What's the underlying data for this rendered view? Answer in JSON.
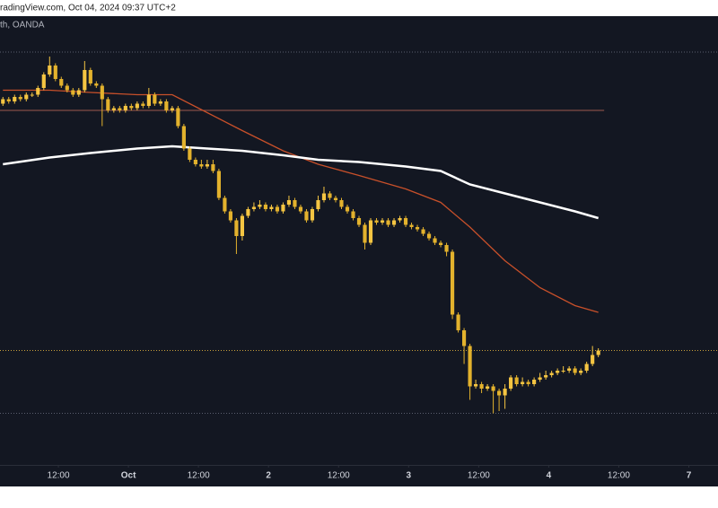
{
  "caption": "radingView.com, Oct 04, 2024 09:37 UTC+2",
  "chart_data": {
    "type": "candlestick",
    "subtitle": "th, OANDA",
    "up_color": "#f5c542",
    "down_color": "#e3b22d",
    "xlim": [
      0,
      123
    ],
    "ylim": [
      1.102,
      1.122
    ],
    "xticks": [
      {
        "value": 10,
        "label": "12:00"
      },
      {
        "value": 22,
        "label": "Oct"
      },
      {
        "value": 34,
        "label": "12:00"
      },
      {
        "value": 46,
        "label": "2"
      },
      {
        "value": 58,
        "label": "12:00"
      },
      {
        "value": 70,
        "label": "3"
      },
      {
        "value": 82,
        "label": "12:00"
      },
      {
        "value": 94,
        "label": "4"
      },
      {
        "value": 106,
        "label": "12:00"
      },
      {
        "value": 118,
        "label": "7"
      }
    ],
    "open": [
      1.1181,
      1.1183,
      1.1182,
      1.1184,
      1.1183,
      1.1185,
      1.1185,
      1.1188,
      1.1194,
      1.1198,
      1.1192,
      1.1189,
      1.1187,
      1.1185,
      1.1187,
      1.1196,
      1.119,
      1.1189,
      1.1183,
      1.1178,
      1.1179,
      1.1178,
      1.118,
      1.1179,
      1.1181,
      1.118,
      1.1185,
      1.1181,
      1.1182,
      1.1178,
      1.1179,
      1.1171,
      1.1161,
      1.1156,
      1.1154,
      1.1153,
      1.1154,
      1.1151,
      1.1139,
      1.1133,
      1.1129,
      1.1122,
      1.1131,
      1.1134,
      1.1135,
      1.1136,
      1.1134,
      1.1135,
      1.1133,
      1.1136,
      1.1138,
      1.1135,
      1.1133,
      1.1129,
      1.1134,
      1.1138,
      1.1141,
      1.1139,
      1.1138,
      1.1135,
      1.1133,
      1.113,
      1.1127,
      1.1119,
      1.1129,
      1.1128,
      1.1129,
      1.1127,
      1.1129,
      1.113,
      1.1127,
      1.1126,
      1.1125,
      1.1123,
      1.1121,
      1.1119,
      1.1118,
      1.1115,
      1.1087,
      1.108,
      1.1073,
      1.1055,
      1.1056,
      1.1054,
      1.1055,
      1.1053,
      1.1051,
      1.1054,
      1.1059,
      1.1056,
      1.1057,
      1.1056,
      1.1058,
      1.1059,
      1.106,
      1.1061,
      1.1062,
      1.1062,
      1.1063,
      1.1061,
      1.1062,
      1.1065,
      1.1069
    ],
    "high": [
      1.1184,
      1.1184,
      1.1185,
      1.1185,
      1.1186,
      1.1186,
      1.1189,
      1.1195,
      1.1202,
      1.1199,
      1.1193,
      1.119,
      1.1188,
      1.1188,
      1.12,
      1.1197,
      1.1191,
      1.119,
      1.1184,
      1.118,
      1.118,
      1.1181,
      1.1181,
      1.1182,
      1.1182,
      1.1188,
      1.1186,
      1.1183,
      1.1183,
      1.118,
      1.118,
      1.1172,
      1.1162,
      1.1157,
      1.1156,
      1.1156,
      1.1156,
      1.1152,
      1.114,
      1.1134,
      1.113,
      1.1132,
      1.1135,
      1.1137,
      1.1138,
      1.1137,
      1.1136,
      1.1136,
      1.1137,
      1.114,
      1.1139,
      1.1136,
      1.1134,
      1.1135,
      1.114,
      1.1144,
      1.1142,
      1.114,
      1.1139,
      1.1136,
      1.1134,
      1.1131,
      1.1128,
      1.113,
      1.113,
      1.113,
      1.113,
      1.113,
      1.1131,
      1.1131,
      1.1128,
      1.1127,
      1.1126,
      1.1124,
      1.1122,
      1.112,
      1.1119,
      1.1116,
      1.1088,
      1.1081,
      1.1074,
      1.1058,
      1.1057,
      1.1056,
      1.1056,
      1.1054,
      1.1056,
      1.106,
      1.106,
      1.1059,
      1.1058,
      1.1059,
      1.1061,
      1.1062,
      1.1062,
      1.1063,
      1.1064,
      1.1064,
      1.1064,
      1.1063,
      1.1066,
      1.1073,
      1.1072
    ],
    "low": [
      1.118,
      1.1181,
      1.1181,
      1.1182,
      1.1182,
      1.1184,
      1.1184,
      1.1187,
      1.1193,
      1.1191,
      1.1188,
      1.1186,
      1.1184,
      1.1184,
      1.1186,
      1.1189,
      1.1188,
      1.1171,
      1.1177,
      1.1177,
      1.1177,
      1.1177,
      1.1178,
      1.1178,
      1.1179,
      1.1179,
      1.118,
      1.118,
      1.1177,
      1.1177,
      1.117,
      1.116,
      1.1155,
      1.1153,
      1.1152,
      1.1152,
      1.115,
      1.1138,
      1.1132,
      1.1128,
      1.1114,
      1.112,
      1.113,
      1.1133,
      1.1134,
      1.1133,
      1.1133,
      1.1132,
      1.1132,
      1.1135,
      1.1134,
      1.1132,
      1.1128,
      1.1128,
      1.1133,
      1.1137,
      1.1138,
      1.1137,
      1.1134,
      1.1132,
      1.1129,
      1.1126,
      1.1116,
      1.1118,
      1.1127,
      1.1127,
      1.1126,
      1.1126,
      1.1128,
      1.1126,
      1.1125,
      1.1124,
      1.1122,
      1.112,
      1.1118,
      1.1117,
      1.1113,
      1.1085,
      1.1079,
      1.1065,
      1.1049,
      1.1054,
      1.1052,
      1.1053,
      1.1043,
      1.1044,
      1.1045,
      1.1053,
      1.1055,
      1.1055,
      1.1055,
      1.1055,
      1.1057,
      1.1058,
      1.1059,
      1.106,
      1.1061,
      1.1061,
      1.106,
      1.106,
      1.1061,
      1.1064,
      1.1068
    ],
    "close": [
      1.1183,
      1.1182,
      1.1184,
      1.1183,
      1.1185,
      1.1185,
      1.1188,
      1.1194,
      1.1198,
      1.1192,
      1.1189,
      1.1187,
      1.1185,
      1.1187,
      1.1196,
      1.119,
      1.1189,
      1.1183,
      1.1178,
      1.1179,
      1.1178,
      1.118,
      1.1179,
      1.1181,
      1.118,
      1.1185,
      1.1181,
      1.1182,
      1.1178,
      1.1179,
      1.1171,
      1.1161,
      1.1156,
      1.1154,
      1.1153,
      1.1154,
      1.1151,
      1.1139,
      1.1133,
      1.1129,
      1.1122,
      1.1131,
      1.1134,
      1.1135,
      1.1136,
      1.1134,
      1.1135,
      1.1133,
      1.1136,
      1.1138,
      1.1135,
      1.1133,
      1.1129,
      1.1134,
      1.1138,
      1.1141,
      1.1139,
      1.1138,
      1.1135,
      1.1133,
      1.113,
      1.1127,
      1.1119,
      1.1129,
      1.1128,
      1.1129,
      1.1127,
      1.1129,
      1.113,
      1.1127,
      1.1126,
      1.1125,
      1.1123,
      1.1121,
      1.1119,
      1.1118,
      1.1115,
      1.1087,
      1.108,
      1.1073,
      1.1055,
      1.1056,
      1.1054,
      1.1055,
      1.1053,
      1.1051,
      1.1054,
      1.1059,
      1.1056,
      1.1057,
      1.1056,
      1.1058,
      1.1059,
      1.106,
      1.1061,
      1.1062,
      1.1062,
      1.1063,
      1.1061,
      1.1062,
      1.1065,
      1.1069,
      1.1071
    ],
    "lines": [
      {
        "color": "#c8502a",
        "x": [
          0,
          8,
          15,
          23,
          29,
          35,
          41,
          48,
          54,
          61,
          69,
          75,
          80,
          86,
          92,
          98,
          102
        ],
        "values": [
          1.1187,
          1.1187,
          1.1186,
          1.1185,
          1.1185,
          1.1177,
          1.1169,
          1.116,
          1.1154,
          1.1149,
          1.1143,
          1.1137,
          1.1126,
          1.1111,
          1.1099,
          1.1091,
          1.1088
        ]
      },
      {
        "color": "#ffffff",
        "x": [
          0,
          8,
          15,
          23,
          29,
          35,
          41,
          48,
          54,
          61,
          69,
          75,
          80,
          86,
          92,
          98,
          102
        ],
        "values": [
          1.1154,
          1.1157,
          1.1159,
          1.1161,
          1.1162,
          1.1161,
          1.116,
          1.1158,
          1.1156,
          1.1155,
          1.1153,
          1.1151,
          1.1145,
          1.1141,
          1.1137,
          1.1133,
          1.113
        ]
      }
    ],
    "levels": [
      {
        "value": 1.1204,
        "color": "#5a5f6e",
        "dash": true
      },
      {
        "value": 1.1178,
        "color": "#9c5a4e",
        "dash": false
      },
      {
        "value": 1.1071,
        "color": "#c9a13a",
        "dash": true
      },
      {
        "value": 1.1043,
        "color": "#5a5f6e",
        "dash": true
      }
    ]
  }
}
